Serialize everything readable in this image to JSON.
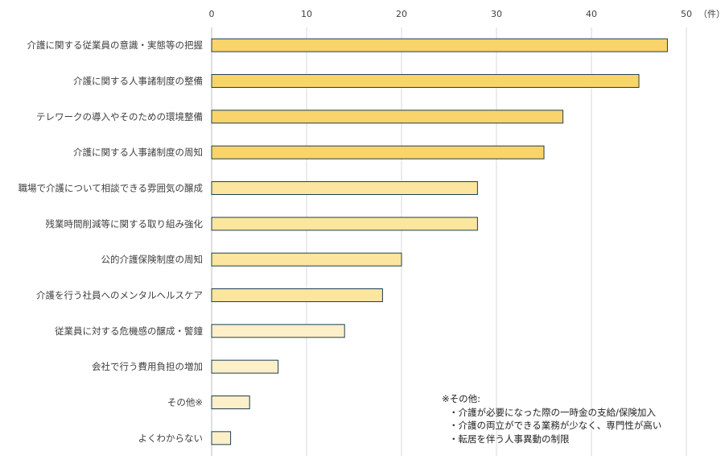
{
  "chart_data": {
    "type": "bar",
    "orientation": "horizontal",
    "unit": "（件）",
    "xlim": [
      0,
      50
    ],
    "xticks": [
      0,
      10,
      20,
      30,
      40,
      50
    ],
    "grid": true,
    "categories": [
      "介護に関する従業員の意識・実態等の把握",
      "介護に関する人事諸制度の整備",
      "テレワークの導入やそのための環境整備",
      "介護に関する人事諸制度の周知",
      "職場で介護について相談できる雰囲気の醸成",
      "残業時間削減等に関する取り組み強化",
      "公的介護保険制度の周知",
      "介護を行う社員へのメンタルヘルスケア",
      "従業員に対する危機感の醸成・警鐘",
      "会社で行う費用負担の増加",
      "その他※",
      "よくわからない"
    ],
    "values": [
      48,
      45,
      37,
      35,
      28,
      28,
      20,
      18,
      14,
      7,
      4,
      2
    ],
    "bar_colors": [
      "#f8d46a",
      "#f8d46a",
      "#f8d46a",
      "#f8d46a",
      "#fbe59f",
      "#fbe59f",
      "#fbe59f",
      "#fbe59f",
      "#fdefc8",
      "#fdefc8",
      "#fdefc8",
      "#fdefc8"
    ]
  },
  "note": {
    "title": "※その他:",
    "items": [
      "・介護が必要になった際の一時金の支給/保険加入",
      "・介護の両立ができる業務が少なく、専門性が高い",
      "・転居を伴う人事異動の制限"
    ]
  }
}
